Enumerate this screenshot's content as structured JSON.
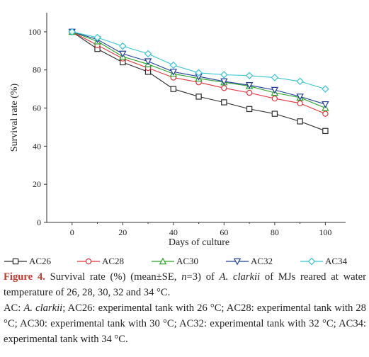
{
  "chart_data": {
    "type": "line",
    "xlabel": "Days of culture",
    "ylabel": "Survival rate (%)",
    "xlim": [
      -10,
      108
    ],
    "ylim": [
      0,
      110
    ],
    "xticks": [
      0,
      20,
      40,
      60,
      80,
      100
    ],
    "yticks": [
      0,
      20,
      40,
      60,
      80,
      100
    ],
    "grid": false,
    "legend": "bottom",
    "x": [
      0,
      10,
      20,
      30,
      40,
      50,
      60,
      70,
      80,
      90,
      100
    ],
    "series": [
      {
        "name": "AC26",
        "color": "#2b2b2b",
        "marker": "square",
        "values": [
          100,
          91,
          84,
          79,
          70,
          66,
          63,
          59.5,
          57,
          53,
          48
        ]
      },
      {
        "name": "AC28",
        "color": "#e0323a",
        "marker": "circle",
        "values": [
          100,
          93,
          86,
          81,
          76,
          73.5,
          70.5,
          68,
          65,
          62.5,
          57
        ]
      },
      {
        "name": "AC30",
        "color": "#2aa12a",
        "marker": "triangle-up",
        "values": [
          100,
          95,
          87,
          83,
          78,
          75.5,
          73.5,
          71.5,
          68,
          65.5,
          60
        ]
      },
      {
        "name": "AC32",
        "color": "#1f3d99",
        "marker": "triangle-down",
        "values": [
          100,
          96,
          88.5,
          84.5,
          79,
          76.5,
          74,
          72,
          69.5,
          66,
          62
        ]
      },
      {
        "name": "AC34",
        "color": "#35c4d2",
        "marker": "diamond",
        "values": [
          100,
          97,
          92.5,
          88.5,
          82.5,
          78.5,
          77.5,
          77,
          76,
          74,
          70
        ]
      }
    ]
  },
  "caption": {
    "figure_label": "Figure 4.",
    "line1_a": " Survival rate (%) (mean±SE, ",
    "n_eq": "n",
    "line1_b": "=3) of ",
    "species": "A. clarkii",
    "line1_c": " of MJs reared at water temperature of 26, 28, 30, 32 and 34 °C.",
    "note_a": "AC: ",
    "note_species": "A. clarkii",
    "note_b": "; AC26: experimental tank with 26 °C; AC28: experimental tank with 28 °C; AC30: experimental tank with 30 °C; AC32: experimental tank with 32 °C; AC34: experimental tank with 34 °C."
  }
}
